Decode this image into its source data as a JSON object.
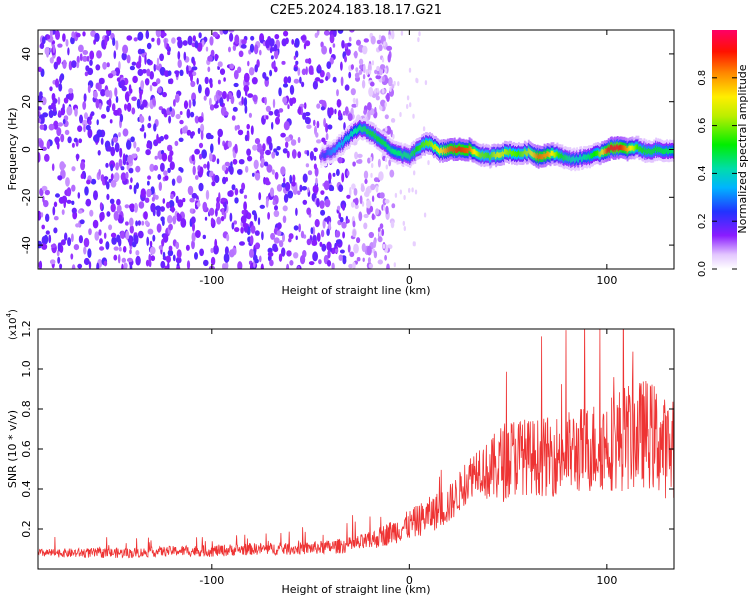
{
  "title": "C2E5.2024.183.18.17.G21",
  "colors": {
    "series": "#ee3333",
    "frame": "#000000"
  },
  "chart_data": [
    {
      "type": "heatmap",
      "xlabel": "Height of straight line (km)",
      "ylabel": "Frequency (Hz)",
      "xlim": [
        -188,
        134
      ],
      "ylim": [
        -50,
        50
      ],
      "xticks": [
        -100,
        0,
        100
      ],
      "yticks": [
        -40,
        -20,
        0,
        20,
        40
      ],
      "colorbar": {
        "label": "Normalized spectral amplitude",
        "range": [
          0,
          1
        ],
        "ticks": [
          0.0,
          0.2,
          0.4,
          0.6,
          0.8
        ]
      },
      "noise_region_x": [
        -188,
        -20
      ],
      "ridge": {
        "x": [
          -45,
          -40,
          -35,
          -30,
          -25,
          -20,
          -15,
          -10,
          -5,
          0,
          5,
          10,
          15,
          20,
          25,
          30,
          35,
          40,
          45,
          50,
          55,
          60,
          65,
          70,
          75,
          80,
          85,
          90,
          95,
          100,
          105,
          110,
          115,
          120,
          125,
          134
        ],
        "y": [
          -3,
          -1,
          2,
          6,
          9,
          7,
          4,
          0,
          -2,
          -3,
          1,
          3,
          -1,
          0,
          0,
          0,
          -2,
          -3,
          -2,
          -1,
          -2,
          -1,
          -3,
          -2,
          -2,
          -4,
          -4,
          -3,
          -2,
          0,
          1,
          0,
          1,
          -1,
          0,
          -1
        ],
        "amplitude": [
          0.2,
          0.3,
          0.35,
          0.4,
          0.45,
          0.5,
          0.5,
          0.45,
          0.45,
          0.45,
          0.55,
          0.6,
          0.7,
          0.85,
          0.9,
          0.85,
          0.6,
          0.55,
          0.7,
          0.6,
          0.55,
          0.65,
          0.85,
          0.8,
          0.55,
          0.45,
          0.4,
          0.45,
          0.55,
          0.9,
          0.95,
          0.8,
          0.55,
          0.5,
          0.5,
          0.45
        ]
      }
    },
    {
      "type": "line",
      "xlabel": "Height of straight line (km)",
      "ylabel": "SNR (10 * v/v)",
      "yscale_label": "(x10",
      "yscale_exp": "4",
      "yscale_close": ")",
      "xlim": [
        -188,
        134
      ],
      "ylim": [
        0,
        1.2
      ],
      "xticks": [
        -100,
        0,
        100
      ],
      "yticks": [
        0.2,
        0.4,
        0.6,
        0.8,
        1.0,
        1.2
      ],
      "series": [
        {
          "x": [
            -188,
            -160,
            -140,
            -120,
            -100,
            -80,
            -60,
            -40,
            -30,
            -20,
            -10,
            0,
            10,
            20,
            25,
            30,
            35,
            40,
            45,
            50,
            55,
            60,
            70,
            80,
            90,
            100,
            110,
            120,
            125,
            130,
            134
          ],
          "values": [
            0.08,
            0.08,
            0.08,
            0.09,
            0.09,
            0.1,
            0.1,
            0.11,
            0.12,
            0.14,
            0.18,
            0.22,
            0.27,
            0.32,
            0.38,
            0.45,
            0.52,
            0.48,
            0.52,
            0.55,
            0.57,
            0.56,
            0.56,
            0.58,
            0.6,
            0.63,
            0.66,
            0.68,
            0.65,
            0.6,
            0.58
          ],
          "max_spike": [
            0.04,
            0.05,
            0.05,
            0.05,
            0.06,
            0.06,
            0.06,
            0.07,
            0.08,
            0.09,
            0.12,
            0.15,
            0.18,
            0.2,
            0.2,
            0.22,
            0.25,
            0.3,
            0.38,
            0.42,
            0.4,
            0.38,
            0.4,
            0.42,
            0.45,
            0.48,
            0.55,
            0.55,
            0.55,
            0.5,
            0.45
          ]
        }
      ]
    }
  ]
}
